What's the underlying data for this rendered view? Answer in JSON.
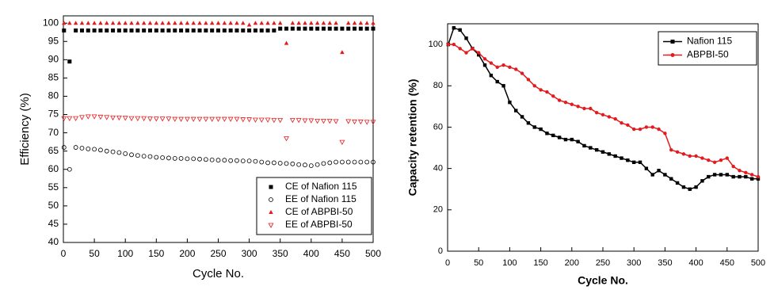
{
  "chart_data": [
    {
      "type": "scatter",
      "x_label": "Cycle No.",
      "y_label": "Efficiency (%)",
      "x": [
        1,
        10,
        20,
        30,
        40,
        50,
        60,
        70,
        80,
        90,
        100,
        110,
        120,
        130,
        140,
        150,
        160,
        170,
        180,
        190,
        200,
        210,
        220,
        230,
        240,
        250,
        260,
        270,
        280,
        290,
        300,
        310,
        320,
        330,
        340,
        350,
        360,
        370,
        380,
        390,
        400,
        410,
        420,
        430,
        440,
        450,
        460,
        470,
        480,
        490,
        500
      ],
      "xlim": [
        0,
        500
      ],
      "xticks": [
        0,
        50,
        100,
        150,
        200,
        250,
        300,
        350,
        400,
        450,
        500
      ],
      "ylim": [
        40,
        102
      ],
      "yticks": [
        40,
        45,
        50,
        55,
        60,
        65,
        70,
        75,
        80,
        85,
        90,
        95,
        100
      ],
      "legend": "lower right",
      "series": [
        {
          "name": "CE of Nafion 115",
          "color": "#000000",
          "marker": "square",
          "values": [
            98,
            89.5,
            98,
            98,
            98,
            98,
            98,
            98,
            98,
            98,
            98,
            98,
            98,
            98,
            98,
            98,
            98,
            98,
            98,
            98,
            98,
            98,
            98,
            98,
            98,
            98,
            98,
            98,
            98,
            98,
            98,
            98,
            98,
            98,
            98,
            98.5,
            98.5,
            98.5,
            98.5,
            98.5,
            98.5,
            98.5,
            98.5,
            98.5,
            98.5,
            98.5,
            98.5,
            98.5,
            98.5,
            98.5,
            98.5
          ]
        },
        {
          "name": "EE of Nafion 115",
          "color": "#000000",
          "marker": "circle-open",
          "values": [
            66,
            60,
            66,
            65.8,
            65.6,
            65.5,
            65.3,
            65,
            64.8,
            64.6,
            64.3,
            64,
            63.8,
            63.6,
            63.5,
            63.3,
            63.2,
            63.1,
            63,
            63,
            62.9,
            62.9,
            62.8,
            62.7,
            62.6,
            62.5,
            62.5,
            62.4,
            62.4,
            62.3,
            62.3,
            62.2,
            62,
            61.8,
            61.8,
            61.7,
            61.6,
            61.5,
            61.3,
            61.2,
            61,
            61.3,
            61.6,
            61.8,
            62,
            62,
            62,
            62,
            62,
            62,
            62
          ]
        },
        {
          "name": "CE of ABPBI-50",
          "color": "#e41a1c",
          "marker": "triangle",
          "values": [
            100,
            100,
            100,
            100,
            100,
            100,
            100,
            100,
            100,
            100,
            100,
            100,
            100,
            100,
            100,
            100,
            100,
            100,
            100,
            100,
            100,
            100,
            100,
            100,
            100,
            100,
            100,
            100,
            100,
            100,
            99.5,
            100,
            100,
            100,
            100,
            100,
            94.5,
            100,
            100,
            100,
            100,
            100,
            100,
            100,
            100,
            92,
            100,
            100,
            100,
            100,
            100
          ]
        },
        {
          "name": "EE of ABPBI-50",
          "color": "#e41a1c",
          "marker": "triangle-down-open",
          "values": [
            74,
            74,
            74,
            74.3,
            74.5,
            74.5,
            74.4,
            74.3,
            74.2,
            74.2,
            74.1,
            74,
            74,
            74,
            73.9,
            73.9,
            73.9,
            73.9,
            73.8,
            73.8,
            73.8,
            73.8,
            73.8,
            73.8,
            73.8,
            73.8,
            73.8,
            73.8,
            73.8,
            73.7,
            73.7,
            73.6,
            73.6,
            73.6,
            73.5,
            73.5,
            68.5,
            73.5,
            73.5,
            73.4,
            73.4,
            73.3,
            73.3,
            73.3,
            73.2,
            67.5,
            73.2,
            73.1,
            73.1,
            73,
            73
          ]
        }
      ]
    },
    {
      "type": "line",
      "x_label": "Cycle No.",
      "y_label": "Capacity retention (%)",
      "x": [
        1,
        10,
        20,
        30,
        40,
        50,
        60,
        70,
        80,
        90,
        100,
        110,
        120,
        130,
        140,
        150,
        160,
        170,
        180,
        190,
        200,
        210,
        220,
        230,
        240,
        250,
        260,
        270,
        280,
        290,
        300,
        310,
        320,
        330,
        340,
        350,
        360,
        370,
        380,
        390,
        400,
        410,
        420,
        430,
        440,
        450,
        460,
        470,
        480,
        490,
        500
      ],
      "xlim": [
        0,
        500
      ],
      "xticks": [
        0,
        50,
        100,
        150,
        200,
        250,
        300,
        350,
        400,
        450,
        500
      ],
      "ylim": [
        0,
        110
      ],
      "yticks": [
        0,
        20,
        40,
        60,
        80,
        100
      ],
      "legend": "upper right",
      "series": [
        {
          "name": "Nafion 115",
          "color": "#000000",
          "marker": "square",
          "values": [
            100,
            108,
            107,
            103,
            98,
            95,
            90,
            85,
            82,
            80,
            72,
            68,
            65,
            62,
            60,
            59,
            57,
            56,
            55,
            54,
            54,
            53,
            51,
            50,
            49,
            48,
            47,
            46,
            45,
            44,
            43,
            43,
            40,
            37,
            39,
            37,
            35,
            33,
            31,
            30,
            31,
            34,
            36,
            37,
            37,
            37,
            36,
            36,
            36,
            35,
            35
          ]
        },
        {
          "name": "ABPBI-50",
          "color": "#e41a1c",
          "marker": "circle",
          "values": [
            100,
            100,
            98,
            96,
            98,
            96,
            93,
            91,
            89,
            90,
            89,
            88,
            86,
            83,
            80,
            78,
            77,
            75,
            73,
            72,
            71,
            70,
            69,
            69,
            67,
            66,
            65,
            64,
            62,
            61,
            59,
            59,
            60,
            60,
            59,
            57,
            49,
            48,
            47,
            46,
            46,
            45,
            44,
            43,
            44,
            45,
            41,
            39,
            38,
            37,
            36
          ]
        }
      ]
    }
  ]
}
